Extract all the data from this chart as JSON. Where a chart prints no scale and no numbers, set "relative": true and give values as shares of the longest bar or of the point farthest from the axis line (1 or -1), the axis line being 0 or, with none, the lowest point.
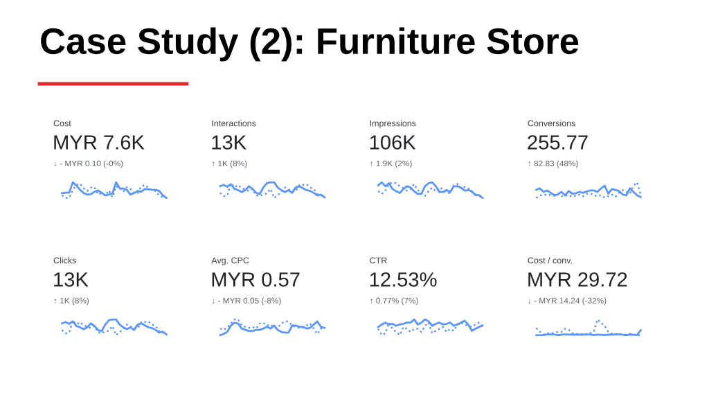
{
  "chart_data": [
    {
      "type": "other",
      "title": "Case Study (2): Furniture Store"
    },
    {
      "type": "line",
      "relative": true,
      "title": "Cost",
      "subtitle": "MYR 7.6K",
      "annotations": [
        "↓ - MYR 0.10 (-0%)"
      ],
      "categories": [
        null,
        null,
        null,
        null,
        null,
        null,
        null,
        null,
        null,
        null,
        null,
        null,
        null,
        null,
        null,
        null,
        null,
        null,
        null,
        null,
        null,
        null,
        null,
        null,
        null,
        null,
        null,
        null,
        null,
        null
      ],
      "series": [
        {
          "color": "#5b95f5",
          "line_style": "solid",
          "values": [
            0.31,
            0.34,
            0.34,
            1.0,
            0.79,
            0.52,
            0.31,
            0.22,
            0.24,
            0.4,
            0.48,
            0.34,
            0.17,
            0.22,
            0.28,
            1.0,
            0.62,
            0.6,
            0.52,
            0.22,
            0.31,
            0.45,
            0.4,
            0.57,
            0.55,
            0.53,
            0.52,
            0.45,
            0.17,
            0.0
          ]
        },
        {
          "color": "#5b95f5",
          "line_style": "dotted",
          "values": [
            0.17,
            0.0,
            0.02,
            0.52,
            0.83,
            0.91,
            0.62,
            0.45,
            0.66,
            0.69,
            0.22,
            0.31,
            0.17,
            0.48,
            0.05,
            0.74,
            0.66,
            0.4,
            0.69,
            0.57,
            0.34,
            0.31,
            0.74,
            0.83,
            0.66,
            0.48,
            0.45,
            0.14,
            0.05,
            0.02
          ]
        }
      ]
    },
    {
      "type": "line",
      "relative": true,
      "title": "Interactions",
      "subtitle": "13K",
      "annotations": [
        "↑ 1K (8%)"
      ],
      "categories": [
        null,
        null,
        null,
        null,
        null,
        null,
        null,
        null,
        null,
        null,
        null,
        null,
        null,
        null,
        null,
        null,
        null,
        null,
        null,
        null,
        null,
        null,
        null,
        null,
        null,
        null,
        null,
        null,
        null,
        null
      ],
      "series": [
        {
          "color": "#5b95f5",
          "line_style": "solid",
          "values": [
            0.75,
            0.83,
            0.72,
            0.88,
            0.58,
            0.5,
            0.38,
            0.5,
            0.75,
            0.58,
            0.33,
            0.25,
            0.67,
            0.95,
            1.0,
            1.0,
            0.67,
            0.5,
            0.38,
            0.5,
            0.33,
            0.67,
            0.75,
            0.62,
            0.5,
            0.45,
            0.33,
            0.17,
            0.22,
            0.05
          ]
        },
        {
          "color": "#5b95f5",
          "line_style": "dotted",
          "values": [
            0.33,
            0.12,
            0.17,
            0.92,
            0.67,
            0.83,
            0.62,
            0.55,
            0.45,
            0.58,
            0.17,
            0.12,
            0.25,
            0.28,
            0.58,
            0.0,
            0.17,
            0.42,
            0.67,
            0.55,
            0.45,
            0.42,
            0.83,
            0.83,
            0.88,
            0.67,
            0.58,
            0.25,
            0.17,
            0.12
          ]
        }
      ]
    },
    {
      "type": "line",
      "relative": true,
      "title": "Impressions",
      "subtitle": "106K",
      "annotations": [
        "↑ 1.9K (2%)"
      ],
      "categories": [
        null,
        null,
        null,
        null,
        null,
        null,
        null,
        null,
        null,
        null,
        null,
        null,
        null,
        null,
        null,
        null,
        null,
        null,
        null,
        null,
        null,
        null,
        null,
        null,
        null,
        null,
        null,
        null,
        null,
        null
      ],
      "series": [
        {
          "color": "#5b95f5",
          "line_style": "solid",
          "values": [
            0.81,
            1.0,
            0.75,
            0.94,
            0.57,
            0.43,
            0.32,
            0.57,
            0.75,
            0.66,
            0.43,
            0.25,
            0.28,
            0.75,
            0.94,
            1.0,
            0.75,
            0.38,
            0.38,
            0.51,
            0.38,
            0.75,
            0.75,
            0.66,
            0.47,
            0.51,
            0.43,
            0.19,
            0.19,
            0.0
          ]
        },
        {
          "color": "#5b95f5",
          "line_style": "dotted",
          "values": [
            0.43,
            0.25,
            0.47,
            0.89,
            1.0,
            0.94,
            0.75,
            0.62,
            0.47,
            0.57,
            0.89,
            0.51,
            0.28,
            0.13,
            0.43,
            0.66,
            0.43,
            0.66,
            0.57,
            0.32,
            0.32,
            0.81,
            0.89,
            0.62,
            0.7,
            0.62,
            0.38,
            0.25,
            0.13,
            0.06
          ]
        }
      ]
    },
    {
      "type": "line",
      "relative": true,
      "title": "Conversions",
      "subtitle": "255.77",
      "annotations": [
        "↑ 82.83 (48%)"
      ],
      "categories": [
        null,
        null,
        null,
        null,
        null,
        null,
        null,
        null,
        null,
        null,
        null,
        null,
        null,
        null,
        null,
        null,
        null,
        null,
        null,
        null,
        null,
        null,
        null,
        null,
        null,
        null,
        null,
        null,
        null,
        null
      ],
      "series": [
        {
          "color": "#5b95f5",
          "line_style": "solid",
          "values": [
            0.52,
            0.61,
            0.39,
            0.48,
            0.33,
            0.19,
            0.22,
            0.39,
            0.17,
            0.44,
            0.28,
            0.3,
            0.39,
            0.33,
            0.41,
            0.48,
            0.48,
            0.39,
            0.61,
            0.78,
            0.28,
            0.56,
            0.52,
            0.44,
            0.22,
            0.17,
            0.61,
            0.39,
            0.17,
            0.06
          ]
        },
        {
          "color": "#5b95f5",
          "line_style": "dotted",
          "values": [
            0.0,
            0.17,
            0.19,
            0.22,
            0.19,
            0.14,
            0.28,
            0.11,
            0.19,
            0.08,
            0.17,
            0.11,
            0.22,
            0.11,
            0.26,
            0.3,
            0.17,
            0.11,
            0.19,
            0.03,
            0.11,
            0.22,
            0.08,
            0.33,
            0.5,
            0.39,
            0.28,
            0.78,
            1.0,
            0.22
          ]
        }
      ]
    },
    {
      "type": "line",
      "relative": true,
      "title": "Clicks",
      "subtitle": "13K",
      "annotations": [
        "↑ 1K (8%)"
      ],
      "categories": [
        null,
        null,
        null,
        null,
        null,
        null,
        null,
        null,
        null,
        null,
        null,
        null,
        null,
        null,
        null,
        null,
        null,
        null,
        null,
        null,
        null,
        null,
        null,
        null,
        null,
        null,
        null,
        null,
        null,
        null
      ],
      "series": [
        {
          "color": "#5b95f5",
          "line_style": "solid",
          "values": [
            0.75,
            0.83,
            0.72,
            0.88,
            0.58,
            0.5,
            0.38,
            0.5,
            0.75,
            0.58,
            0.33,
            0.25,
            0.67,
            0.95,
            1.0,
            1.0,
            0.67,
            0.5,
            0.38,
            0.5,
            0.33,
            0.67,
            0.75,
            0.62,
            0.5,
            0.45,
            0.33,
            0.17,
            0.22,
            0.05
          ]
        },
        {
          "color": "#5b95f5",
          "line_style": "dotted",
          "values": [
            0.33,
            0.12,
            0.17,
            0.92,
            0.67,
            0.83,
            0.62,
            0.55,
            0.45,
            0.58,
            0.17,
            0.12,
            0.25,
            0.28,
            0.58,
            0.0,
            0.17,
            0.42,
            0.67,
            0.55,
            0.45,
            0.42,
            0.83,
            0.83,
            0.88,
            0.67,
            0.58,
            0.25,
            0.17,
            0.12
          ]
        }
      ]
    },
    {
      "type": "line",
      "relative": true,
      "title": "Avg. CPC",
      "subtitle": "MYR 0.57",
      "annotations": [
        "↓ - MYR 0.05 (-8%)"
      ],
      "categories": [
        null,
        null,
        null,
        null,
        null,
        null,
        null,
        null,
        null,
        null,
        null,
        null,
        null,
        null,
        null,
        null,
        null,
        null,
        null,
        null,
        null,
        null,
        null,
        null,
        null,
        null,
        null,
        null,
        null,
        null
      ],
      "series": [
        {
          "color": "#5b95f5",
          "line_style": "solid",
          "values": [
            0.0,
            0.08,
            0.21,
            0.61,
            0.79,
            0.74,
            0.42,
            0.34,
            0.26,
            0.26,
            0.34,
            0.34,
            0.42,
            0.53,
            0.42,
            0.61,
            0.34,
            0.21,
            0.16,
            0.16,
            0.61,
            0.61,
            0.53,
            0.53,
            0.42,
            0.47,
            0.68,
            0.87,
            0.53,
            0.47
          ]
        },
        {
          "color": "#5b95f5",
          "line_style": "dotted",
          "values": [
            0.42,
            0.34,
            0.47,
            0.74,
            1.0,
            1.0,
            0.61,
            0.53,
            0.47,
            0.53,
            0.42,
            0.74,
            0.79,
            0.61,
            0.68,
            0.47,
            0.47,
            0.74,
            0.87,
            0.87,
            0.61,
            0.53,
            0.47,
            0.47,
            0.61,
            0.74,
            0.42,
            0.08,
            0.42,
            0.47
          ]
        }
      ]
    },
    {
      "type": "line",
      "relative": true,
      "title": "CTR",
      "subtitle": "12.53%",
      "annotations": [
        "↑ 0.77% (7%)"
      ],
      "categories": [
        null,
        null,
        null,
        null,
        null,
        null,
        null,
        null,
        null,
        null,
        null,
        null,
        null,
        null,
        null,
        null,
        null,
        null,
        null,
        null,
        null,
        null,
        null,
        null,
        null,
        null,
        null,
        null,
        null,
        null
      ],
      "series": [
        {
          "color": "#5b95f5",
          "line_style": "solid",
          "values": [
            0.52,
            0.68,
            0.8,
            0.68,
            0.72,
            0.6,
            0.68,
            0.72,
            0.8,
            0.8,
            1.0,
            0.68,
            0.8,
            1.0,
            0.88,
            0.6,
            0.72,
            0.8,
            0.68,
            0.72,
            0.8,
            0.6,
            0.68,
            0.8,
            0.92,
            0.68,
            0.28,
            0.4,
            0.52,
            0.6
          ]
        },
        {
          "color": "#5b95f5",
          "line_style": "dotted",
          "values": [
            0.4,
            0.0,
            0.12,
            0.8,
            0.4,
            0.2,
            0.0,
            0.52,
            0.4,
            0.2,
            0.4,
            0.4,
            0.2,
            0.6,
            0.8,
            0.12,
            0.28,
            0.4,
            0.52,
            0.2,
            0.4,
            0.28,
            0.68,
            0.8,
            0.68,
            0.6,
            0.52,
            0.68,
            0.8,
            0.6
          ]
        }
      ]
    },
    {
      "type": "line",
      "relative": true,
      "title": "Cost / conv.",
      "subtitle": "MYR 29.72",
      "annotations": [
        "↓ - MYR 14.24 (-32%)"
      ],
      "categories": [
        null,
        null,
        null,
        null,
        null,
        null,
        null,
        null,
        null,
        null,
        null,
        null,
        null,
        null,
        null,
        null,
        null,
        null,
        null,
        null,
        null,
        null,
        null,
        null,
        null,
        null,
        null,
        null,
        null,
        null
      ],
      "series": [
        {
          "color": "#5b95f5",
          "line_style": "solid",
          "values": [
            0.0,
            0.0,
            0.01,
            0.04,
            0.05,
            0.04,
            0.01,
            0.03,
            0.05,
            0.04,
            0.03,
            0.04,
            0.03,
            0.03,
            0.05,
            0.04,
            0.01,
            0.04,
            0.03,
            0.01,
            0.04,
            0.03,
            0.04,
            0.05,
            0.03,
            0.01,
            0.04,
            0.03,
            0.01,
            0.31
          ]
        },
        {
          "color": "#5b95f5",
          "line_style": "dotted",
          "values": [
            0.45,
            0.23,
            0.04,
            0.13,
            0.1,
            0.16,
            0.2,
            0.2,
            0.41,
            0.35,
            0.13,
            0.1,
            0.05,
            0.08,
            0.04,
            0.13,
            0.23,
            1.0,
            0.79,
            0.6,
            0.23,
            0.1,
            0.08,
            0.04,
            0.06,
            0.04,
            0.08,
            0.04,
            0.01,
            0.0
          ]
        }
      ]
    }
  ]
}
